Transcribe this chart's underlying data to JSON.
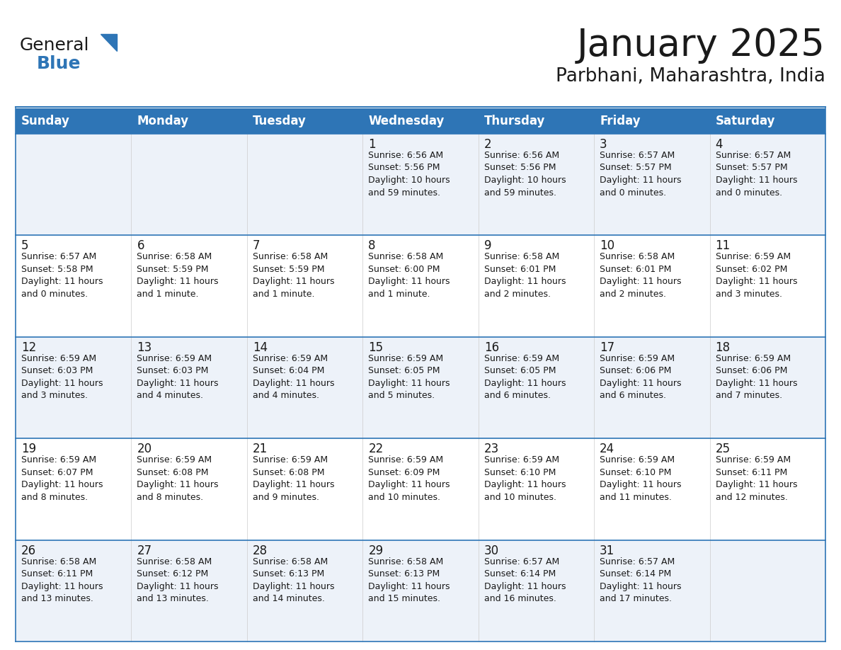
{
  "title": "January 2025",
  "subtitle": "Parbhani, Maharashtra, India",
  "header_bg": "#2e75b6",
  "header_text": "#ffffff",
  "cell_bg_light": "#edf2f9",
  "cell_bg_white": "#ffffff",
  "border_color": "#2e75b6",
  "days_of_week": [
    "Sunday",
    "Monday",
    "Tuesday",
    "Wednesday",
    "Thursday",
    "Friday",
    "Saturday"
  ],
  "calendar_data": [
    [
      "",
      "",
      "",
      "1\nSunrise: 6:56 AM\nSunset: 5:56 PM\nDaylight: 10 hours\nand 59 minutes.",
      "2\nSunrise: 6:56 AM\nSunset: 5:56 PM\nDaylight: 10 hours\nand 59 minutes.",
      "3\nSunrise: 6:57 AM\nSunset: 5:57 PM\nDaylight: 11 hours\nand 0 minutes.",
      "4\nSunrise: 6:57 AM\nSunset: 5:57 PM\nDaylight: 11 hours\nand 0 minutes."
    ],
    [
      "5\nSunrise: 6:57 AM\nSunset: 5:58 PM\nDaylight: 11 hours\nand 0 minutes.",
      "6\nSunrise: 6:58 AM\nSunset: 5:59 PM\nDaylight: 11 hours\nand 1 minute.",
      "7\nSunrise: 6:58 AM\nSunset: 5:59 PM\nDaylight: 11 hours\nand 1 minute.",
      "8\nSunrise: 6:58 AM\nSunset: 6:00 PM\nDaylight: 11 hours\nand 1 minute.",
      "9\nSunrise: 6:58 AM\nSunset: 6:01 PM\nDaylight: 11 hours\nand 2 minutes.",
      "10\nSunrise: 6:58 AM\nSunset: 6:01 PM\nDaylight: 11 hours\nand 2 minutes.",
      "11\nSunrise: 6:59 AM\nSunset: 6:02 PM\nDaylight: 11 hours\nand 3 minutes."
    ],
    [
      "12\nSunrise: 6:59 AM\nSunset: 6:03 PM\nDaylight: 11 hours\nand 3 minutes.",
      "13\nSunrise: 6:59 AM\nSunset: 6:03 PM\nDaylight: 11 hours\nand 4 minutes.",
      "14\nSunrise: 6:59 AM\nSunset: 6:04 PM\nDaylight: 11 hours\nand 4 minutes.",
      "15\nSunrise: 6:59 AM\nSunset: 6:05 PM\nDaylight: 11 hours\nand 5 minutes.",
      "16\nSunrise: 6:59 AM\nSunset: 6:05 PM\nDaylight: 11 hours\nand 6 minutes.",
      "17\nSunrise: 6:59 AM\nSunset: 6:06 PM\nDaylight: 11 hours\nand 6 minutes.",
      "18\nSunrise: 6:59 AM\nSunset: 6:06 PM\nDaylight: 11 hours\nand 7 minutes."
    ],
    [
      "19\nSunrise: 6:59 AM\nSunset: 6:07 PM\nDaylight: 11 hours\nand 8 minutes.",
      "20\nSunrise: 6:59 AM\nSunset: 6:08 PM\nDaylight: 11 hours\nand 8 minutes.",
      "21\nSunrise: 6:59 AM\nSunset: 6:08 PM\nDaylight: 11 hours\nand 9 minutes.",
      "22\nSunrise: 6:59 AM\nSunset: 6:09 PM\nDaylight: 11 hours\nand 10 minutes.",
      "23\nSunrise: 6:59 AM\nSunset: 6:10 PM\nDaylight: 11 hours\nand 10 minutes.",
      "24\nSunrise: 6:59 AM\nSunset: 6:10 PM\nDaylight: 11 hours\nand 11 minutes.",
      "25\nSunrise: 6:59 AM\nSunset: 6:11 PM\nDaylight: 11 hours\nand 12 minutes."
    ],
    [
      "26\nSunrise: 6:58 AM\nSunset: 6:11 PM\nDaylight: 11 hours\nand 13 minutes.",
      "27\nSunrise: 6:58 AM\nSunset: 6:12 PM\nDaylight: 11 hours\nand 13 minutes.",
      "28\nSunrise: 6:58 AM\nSunset: 6:13 PM\nDaylight: 11 hours\nand 14 minutes.",
      "29\nSunrise: 6:58 AM\nSunset: 6:13 PM\nDaylight: 11 hours\nand 15 minutes.",
      "30\nSunrise: 6:57 AM\nSunset: 6:14 PM\nDaylight: 11 hours\nand 16 minutes.",
      "31\nSunrise: 6:57 AM\nSunset: 6:14 PM\nDaylight: 11 hours\nand 17 minutes.",
      ""
    ]
  ],
  "logo_color_general": "#1a1a1a",
  "logo_color_blue": "#2e75b6",
  "title_color": "#1a1a1a",
  "subtitle_color": "#1a1a1a",
  "cell_text_color": "#1a1a1a",
  "title_fontsize": 38,
  "subtitle_fontsize": 19,
  "header_fontsize": 12,
  "day_num_fontsize": 12,
  "cell_fontsize": 9,
  "num_rows": 5,
  "num_cols": 7
}
